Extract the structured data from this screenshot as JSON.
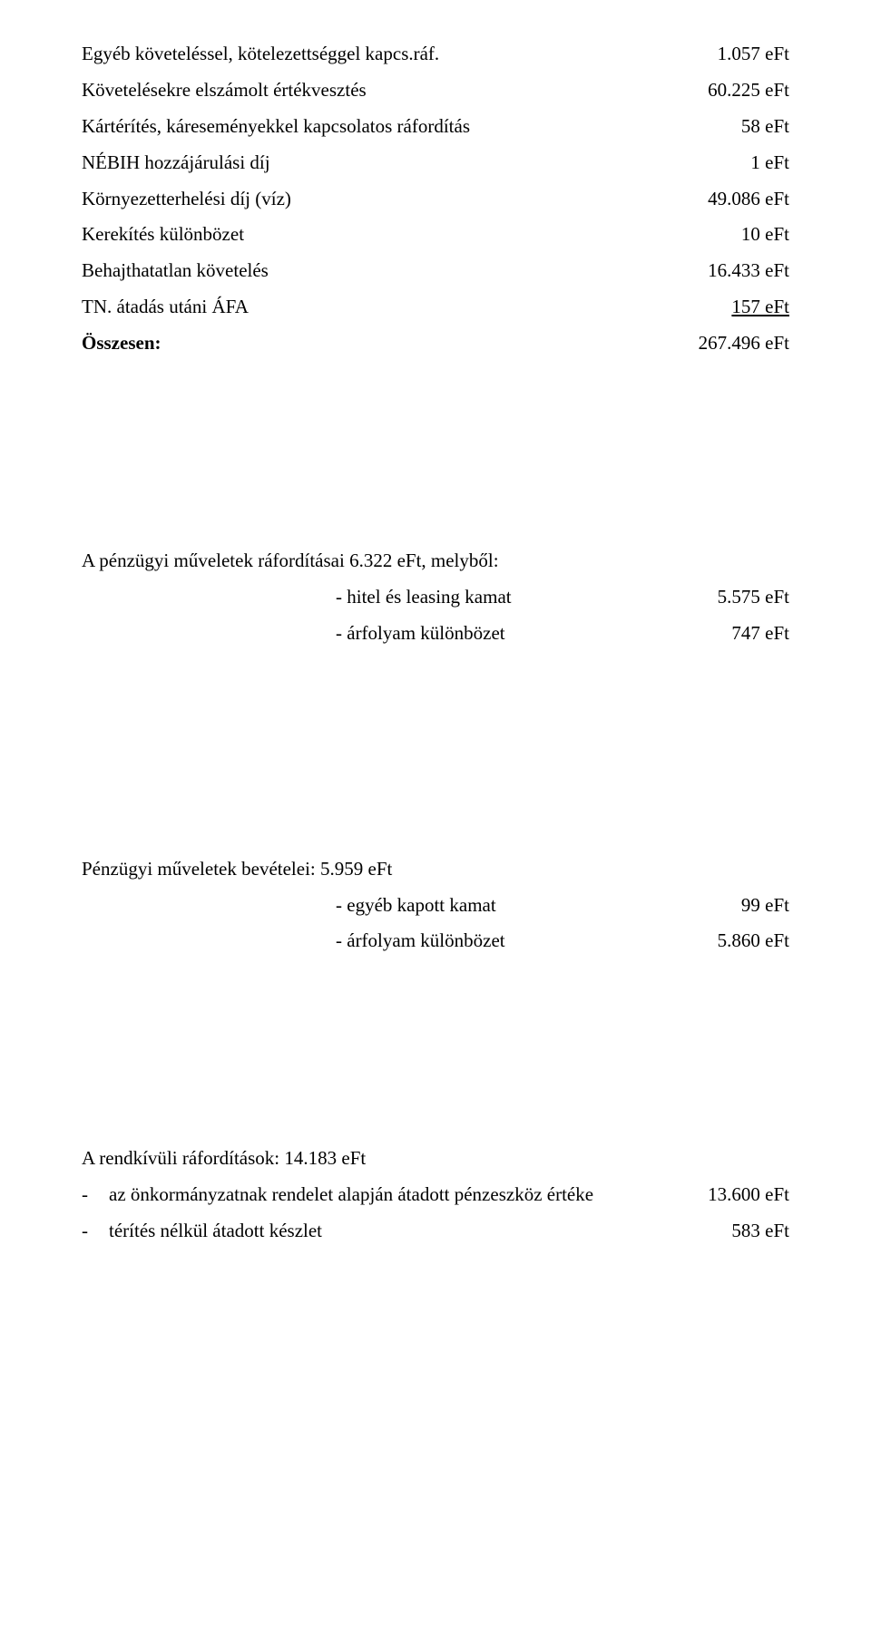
{
  "list1": {
    "rows": [
      {
        "label": "Egyéb követeléssel, kötelezettséggel kapcs.ráf.",
        "value": "1.057 eFt"
      },
      {
        "label": "Követelésekre elszámolt értékvesztés",
        "value": "60.225 eFt"
      },
      {
        "label": "Kártérítés, káreseményekkel kapcsolatos ráfordítás",
        "value": "58 eFt"
      },
      {
        "label": "NÉBIH hozzájárulási díj",
        "value": "1 eFt"
      },
      {
        "label": "Környezetterhelési díj (víz)",
        "value": "49.086 eFt"
      },
      {
        "label": "Kerekítés különbözet",
        "value": "10 eFt"
      },
      {
        "label": "Behajthatatlan követelés",
        "value": "16.433 eFt"
      },
      {
        "label": "TN. átadás utáni ÁFA",
        "value": "157 eFt",
        "underline": true
      },
      {
        "label": "Összesen:",
        "value": "267.496 eFt",
        "bold": true
      }
    ]
  },
  "section2": {
    "title": "A pénzügyi műveletek ráfordításai 6.322 eFt, melyből:",
    "rows": [
      {
        "label": "- hitel és leasing kamat",
        "value": "5.575 eFt"
      },
      {
        "label": "- árfolyam különbözet",
        "value": "747 eFt"
      }
    ]
  },
  "section3": {
    "title": "Pénzügyi műveletek bevételei: 5.959 eFt",
    "rows": [
      {
        "label": "- egyéb kapott kamat",
        "value": "99  eFt"
      },
      {
        "label": "- árfolyam különbözet",
        "value": "5.860  eFt"
      }
    ]
  },
  "section4": {
    "title": "A rendkívüli ráfordítások: 14.183 eFt",
    "rows": [
      {
        "dash": "-",
        "label": "az önkormányzatnak rendelet alapján átadott pénzeszköz értéke",
        "value": "13.600 eFt"
      },
      {
        "dash": "-",
        "label": "térítés nélkül átadott készlet",
        "value": "583 eFt"
      }
    ]
  }
}
